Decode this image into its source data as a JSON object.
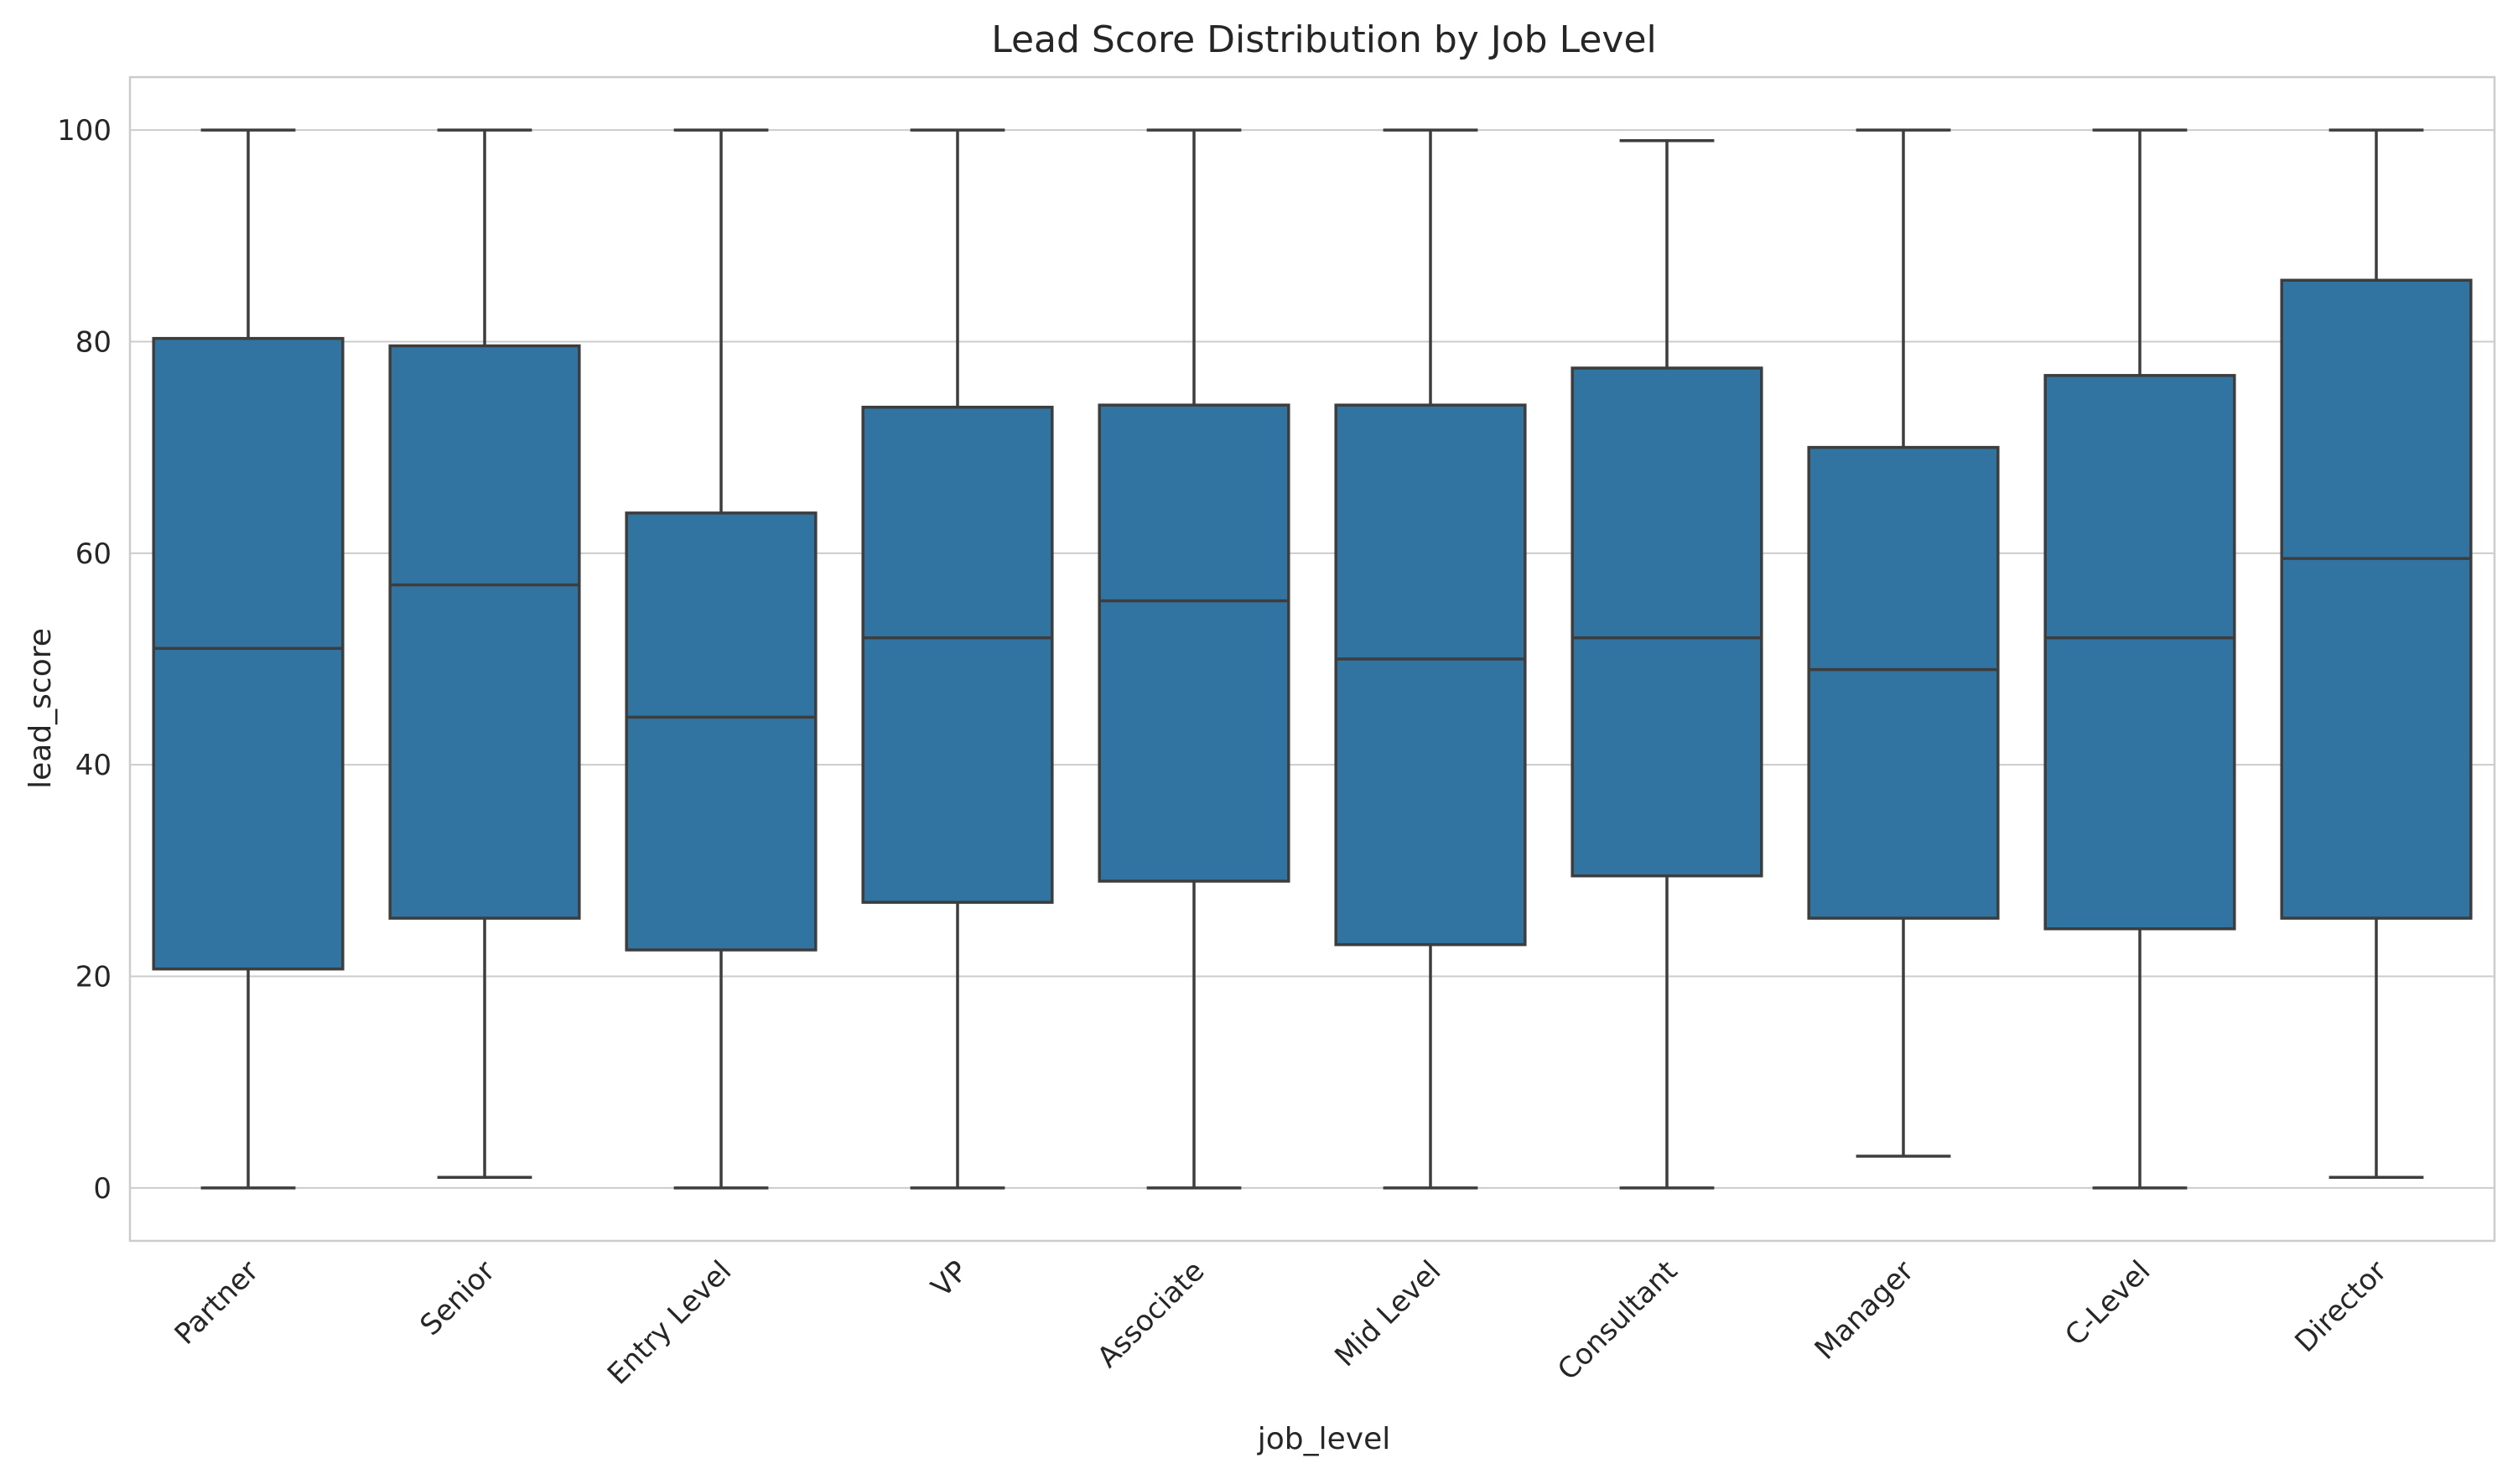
{
  "chart_data": {
    "type": "box",
    "title": "Lead Score Distribution by Job Level",
    "xlabel": "job_level",
    "ylabel": "lead_score",
    "ylim": [
      -5,
      105
    ],
    "yticks": [
      0,
      20,
      40,
      60,
      80,
      100
    ],
    "grid": "horizontal",
    "x_tick_rotation": "45",
    "box_color": "#3274a1",
    "line_color": "#3d3d3d",
    "grid_color": "#cccccc",
    "frame_color": "#cccccc",
    "categories": [
      "Partner",
      "Senior",
      "Entry Level",
      "VP",
      "Associate",
      "Mid Level",
      "Consultant",
      "Manager",
      "C-Level",
      "Director"
    ],
    "boxes": [
      {
        "label": "Partner",
        "whisker_low": 0,
        "q1": 20.7,
        "median": 51.0,
        "q3": 80.3,
        "whisker_high": 100
      },
      {
        "label": "Senior",
        "whisker_low": 1,
        "q1": 25.5,
        "median": 57.0,
        "q3": 79.6,
        "whisker_high": 100
      },
      {
        "label": "Entry Level",
        "whisker_low": 0,
        "q1": 22.5,
        "median": 44.5,
        "q3": 63.8,
        "whisker_high": 100
      },
      {
        "label": "VP",
        "whisker_low": 0,
        "q1": 27.0,
        "median": 52.0,
        "q3": 73.8,
        "whisker_high": 100
      },
      {
        "label": "Associate",
        "whisker_low": 0,
        "q1": 29.0,
        "median": 55.5,
        "q3": 74.0,
        "whisker_high": 100
      },
      {
        "label": "Mid Level",
        "whisker_low": 0,
        "q1": 23.0,
        "median": 50.0,
        "q3": 74.0,
        "whisker_high": 100
      },
      {
        "label": "Consultant",
        "whisker_low": 0,
        "q1": 29.5,
        "median": 52.0,
        "q3": 77.5,
        "whisker_high": 99
      },
      {
        "label": "Manager",
        "whisker_low": 3,
        "q1": 25.5,
        "median": 49.0,
        "q3": 70.0,
        "whisker_high": 100
      },
      {
        "label": "C-Level",
        "whisker_low": 0,
        "q1": 24.5,
        "median": 52.0,
        "q3": 76.8,
        "whisker_high": 100
      },
      {
        "label": "Director",
        "whisker_low": 1,
        "q1": 25.5,
        "median": 59.5,
        "q3": 85.8,
        "whisker_high": 100
      }
    ]
  }
}
